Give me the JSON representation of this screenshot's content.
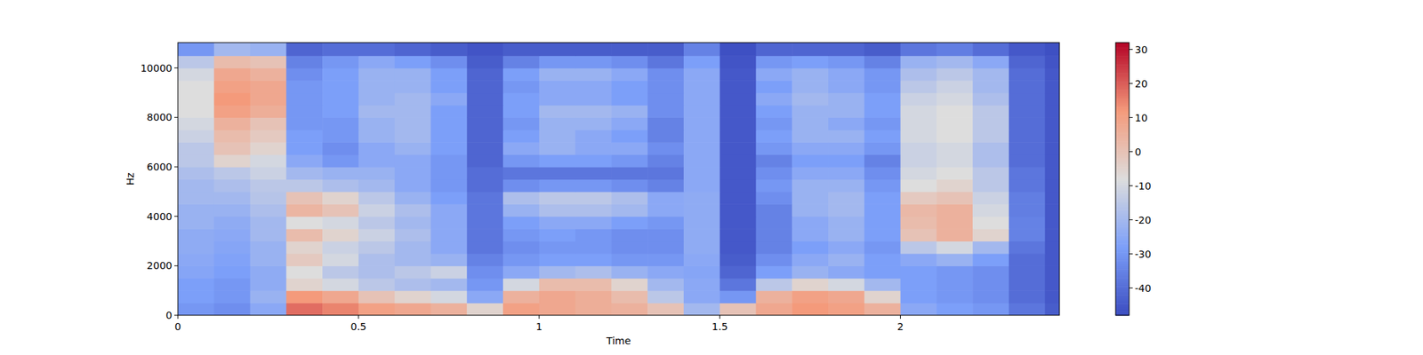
{
  "chart_data": {
    "type": "heatmap",
    "xlabel": "Time",
    "ylabel": "Hz",
    "xlim": [
      0,
      2.44
    ],
    "xticks": [
      0,
      0.5,
      1,
      1.5,
      2
    ],
    "ylim": [
      0,
      11025
    ],
    "yticks": [
      0,
      2000,
      4000,
      6000,
      8000,
      10000
    ],
    "grid": false,
    "x_edges": [
      0,
      0.1,
      0.2,
      0.3,
      0.4,
      0.5,
      0.6,
      0.7,
      0.8,
      0.9,
      1.0,
      1.1,
      1.2,
      1.3,
      1.4,
      1.5,
      1.6,
      1.7,
      1.8,
      1.9,
      2.0,
      2.1,
      2.2,
      2.3,
      2.4,
      2.44
    ],
    "y_edges": [
      0,
      500,
      1000,
      1500,
      2000,
      2500,
      3000,
      3500,
      4000,
      4500,
      5000,
      5500,
      6000,
      6500,
      7000,
      7500,
      8000,
      8500,
      9000,
      9500,
      10000,
      10500,
      11025
    ],
    "colorbar_lim": [
      -48,
      32
    ],
    "colorbar_ticks": [
      -40,
      -30,
      -20,
      -10,
      0,
      10,
      20,
      30
    ],
    "z": [
      [
        -30,
        -32,
        -25,
        18,
        15,
        10,
        8,
        5,
        -5,
        10,
        8,
        6,
        5,
        0,
        -20,
        0,
        8,
        12,
        10,
        5,
        -25,
        -28,
        -30,
        -38,
        -44
      ],
      [
        -28,
        -30,
        -22,
        12,
        8,
        0,
        -5,
        -10,
        -25,
        5,
        8,
        6,
        2,
        -15,
        -25,
        -30,
        5,
        10,
        8,
        -5,
        -28,
        -30,
        -32,
        -40,
        -45
      ],
      [
        -28,
        -30,
        -24,
        -5,
        -10,
        -15,
        -18,
        -20,
        -30,
        -10,
        2,
        2,
        -5,
        -20,
        -25,
        -38,
        -15,
        -5,
        -10,
        -20,
        -28,
        -30,
        -32,
        -40,
        -45
      ],
      [
        -26,
        -28,
        -24,
        -8,
        -15,
        -18,
        -15,
        -12,
        -32,
        -25,
        -20,
        -18,
        -22,
        -25,
        -26,
        -42,
        -28,
        -22,
        -25,
        -28,
        -28,
        -30,
        -32,
        -40,
        -45
      ],
      [
        -25,
        -27,
        -22,
        -2,
        -10,
        -18,
        -20,
        -22,
        -35,
        -30,
        -28,
        -28,
        -30,
        -30,
        -25,
        -44,
        -32,
        -25,
        -22,
        -28,
        -25,
        -22,
        -28,
        -40,
        -45
      ],
      [
        -24,
        -26,
        -22,
        -5,
        -12,
        -15,
        -20,
        -25,
        -38,
        -32,
        -30,
        -30,
        -32,
        -32,
        -24,
        -45,
        -35,
        -28,
        -25,
        -30,
        -15,
        -10,
        -20,
        -38,
        -45
      ],
      [
        -24,
        -25,
        -20,
        2,
        -5,
        -12,
        -18,
        -25,
        -38,
        -30,
        -28,
        -30,
        -32,
        -32,
        -24,
        -45,
        -35,
        -25,
        -22,
        -28,
        0,
        5,
        -5,
        -35,
        -45
      ],
      [
        -22,
        -24,
        -20,
        -8,
        -10,
        -15,
        -20,
        -25,
        -38,
        -28,
        -25,
        -25,
        -28,
        -30,
        -24,
        -45,
        -35,
        -25,
        -22,
        -28,
        2,
        5,
        -8,
        -35,
        -45
      ],
      [
        -22,
        -22,
        -18,
        4,
        0,
        -12,
        -18,
        -25,
        -38,
        -22,
        -18,
        -18,
        -20,
        -25,
        -24,
        -45,
        -35,
        -22,
        -20,
        -28,
        3,
        5,
        -10,
        -36,
        -45
      ],
      [
        -20,
        -20,
        -16,
        0,
        -5,
        -15,
        -22,
        -28,
        -38,
        -18,
        -15,
        -15,
        -18,
        -25,
        -24,
        -45,
        -32,
        -22,
        -20,
        -28,
        -2,
        0,
        -12,
        -36,
        -45
      ],
      [
        -20,
        -18,
        -15,
        -15,
        -18,
        -20,
        -25,
        -30,
        -40,
        -32,
        -30,
        -30,
        -32,
        -35,
        -25,
        -45,
        -30,
        -22,
        -22,
        -30,
        -8,
        -5,
        -15,
        -38,
        -45
      ],
      [
        -18,
        -15,
        -12,
        -20,
        -22,
        -22,
        -25,
        -30,
        -40,
        -38,
        -38,
        -38,
        -38,
        -38,
        -25,
        -45,
        -32,
        -25,
        -25,
        -32,
        -10,
        -8,
        -15,
        -38,
        -45
      ],
      [
        -15,
        -5,
        -10,
        -25,
        -30,
        -25,
        -25,
        -30,
        -42,
        -30,
        -28,
        -28,
        -30,
        -35,
        -25,
        -45,
        -35,
        -28,
        -28,
        -35,
        -12,
        -10,
        -18,
        -40,
        -45
      ],
      [
        -15,
        0,
        -5,
        -28,
        -32,
        -25,
        -22,
        -28,
        -42,
        -25,
        -22,
        -25,
        -25,
        -32,
        -25,
        -45,
        -30,
        -25,
        -25,
        -30,
        -12,
        -10,
        -18,
        -40,
        -45
      ],
      [
        -12,
        2,
        -2,
        -28,
        -30,
        -22,
        -20,
        -28,
        -42,
        -28,
        -22,
        -25,
        -28,
        -35,
        -25,
        -45,
        -28,
        -22,
        -22,
        -28,
        -10,
        -8,
        -15,
        -40,
        -45
      ],
      [
        -10,
        5,
        0,
        -30,
        -30,
        -22,
        -20,
        -28,
        -42,
        -30,
        -22,
        -22,
        -25,
        -35,
        -25,
        -45,
        -30,
        -22,
        -25,
        -30,
        -10,
        -8,
        -15,
        -40,
        -45
      ],
      [
        -8,
        10,
        6,
        -30,
        -28,
        -20,
        -20,
        -28,
        -42,
        -28,
        -20,
        -20,
        -22,
        -32,
        -25,
        -45,
        -28,
        -22,
        -22,
        -28,
        -10,
        -8,
        -15,
        -40,
        -45
      ],
      [
        -8,
        12,
        8,
        -30,
        -28,
        -22,
        -20,
        -25,
        -42,
        -28,
        -25,
        -25,
        -28,
        -32,
        -25,
        -45,
        -25,
        -20,
        -22,
        -28,
        -12,
        -10,
        -18,
        -40,
        -45
      ],
      [
        -8,
        10,
        8,
        -30,
        -28,
        -22,
        -22,
        -28,
        -42,
        -30,
        -25,
        -25,
        -28,
        -32,
        -25,
        -45,
        -28,
        -22,
        -25,
        -30,
        -15,
        -12,
        -20,
        -40,
        -45
      ],
      [
        -10,
        8,
        5,
        -32,
        -28,
        -22,
        -22,
        -28,
        -42,
        -28,
        -22,
        -22,
        -25,
        -32,
        -25,
        -45,
        -25,
        -22,
        -25,
        -30,
        -18,
        -15,
        -20,
        -40,
        -45
      ],
      [
        -15,
        2,
        0,
        -35,
        -30,
        -25,
        -28,
        -32,
        -44,
        -35,
        -30,
        -30,
        -32,
        -38,
        -28,
        -46,
        -30,
        -28,
        -30,
        -35,
        -22,
        -20,
        -25,
        -42,
        -46
      ],
      [
        -30,
        -20,
        -22,
        -42,
        -40,
        -40,
        -42,
        -44,
        -46,
        -44,
        -44,
        -44,
        -44,
        -44,
        -35,
        -47,
        -42,
        -42,
        -42,
        -44,
        -38,
        -36,
        -40,
        -45,
        -47
      ]
    ]
  }
}
